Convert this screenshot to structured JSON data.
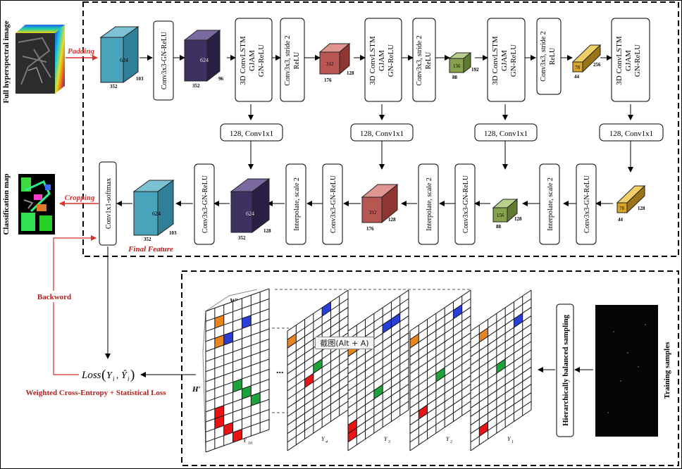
{
  "input": {
    "title": "Full hyperspectral image",
    "padding": "Padding"
  },
  "output": {
    "title": "Classification map",
    "cropping": "Cropping"
  },
  "encoder": {
    "cube1": {
      "side": "624",
      "depth": "103",
      "width": "352"
    },
    "conv1": "Conv3x3-GN-ReLU",
    "cube2": {
      "side": "624",
      "depth": "96",
      "width": "352"
    },
    "lstm1": [
      "3D ConvLSTM",
      "GJAM",
      "GN-ReLU"
    ],
    "down1": [
      "Conv3x3, stride 2",
      "ReLU"
    ],
    "cube3": {
      "side": "312",
      "depth": "128",
      "width": "176"
    },
    "lstm2": [
      "3D ConvLSTM",
      "GJAM",
      "GN-ReLU"
    ],
    "down2": [
      "Conv3x3, stride 2",
      "ReLU"
    ],
    "cube4": {
      "side": "156",
      "depth": "192",
      "width": "88"
    },
    "lstm3": [
      "3D ConvLSTM",
      "GJAM",
      "GN-ReLU"
    ],
    "down3": [
      "Conv3x3, stride 2",
      "ReLU"
    ],
    "cube5": {
      "side": "78",
      "depth": "256",
      "width": "44"
    },
    "lstm4": [
      "3D ConvLSTM",
      "GJAM",
      "GN-ReLU"
    ]
  },
  "skip_label": "128, Conv1x1",
  "decoder": {
    "cube5": {
      "side": "78",
      "depth": "128",
      "width": "44"
    },
    "conv_a": "Conv3x3-GN-ReLU",
    "interp_a": "Interpolate, scale 2",
    "cube4": {
      "side": "156",
      "depth": "128",
      "width": "88"
    },
    "conv_b": "Conv3x3-GN-ReLU",
    "interp_b": "Interpolate, scale 2",
    "cube3": {
      "side": "312",
      "depth": "128",
      "width": "176"
    },
    "conv_c": "Conv3x3-GN-ReLU",
    "interp_c": "Interpolate, scale 2",
    "cube2": {
      "side": "624",
      "depth": "128",
      "width": "352"
    },
    "conv_d": "Conv3x3-GN-ReLU",
    "cube1": {
      "side": "624",
      "depth": "103",
      "width": "352"
    },
    "final_feature": "Final Feature",
    "softmax": "Conv1x1-softmax"
  },
  "loss": {
    "backward": "Backword",
    "formula_prefix": "Loss",
    "yi": "Y",
    "hat": "Ŷ",
    "sub": "i",
    "caption": "Weighted Cross-Entropy + Statistical Loss"
  },
  "sampling": {
    "hierarchical": "Hierarchically balanced sampling",
    "training": "Training samples",
    "w_label": "W′",
    "h_label": "H′",
    "ellipsis": "...",
    "grid_labels": [
      "Y",
      "Y",
      "Y",
      "Y",
      "Y"
    ],
    "grid_subs": [
      "10",
      "4",
      "3",
      "2",
      "1"
    ]
  },
  "tooltip": "截图(Alt + A)",
  "colors": {
    "teal": "#48a3bb",
    "purple": "#3e3161",
    "red": "#b85752",
    "green": "#86a24c",
    "gold": "#d9a42a",
    "arrow_red": "#d9302a",
    "text_red": "#b3201c"
  }
}
